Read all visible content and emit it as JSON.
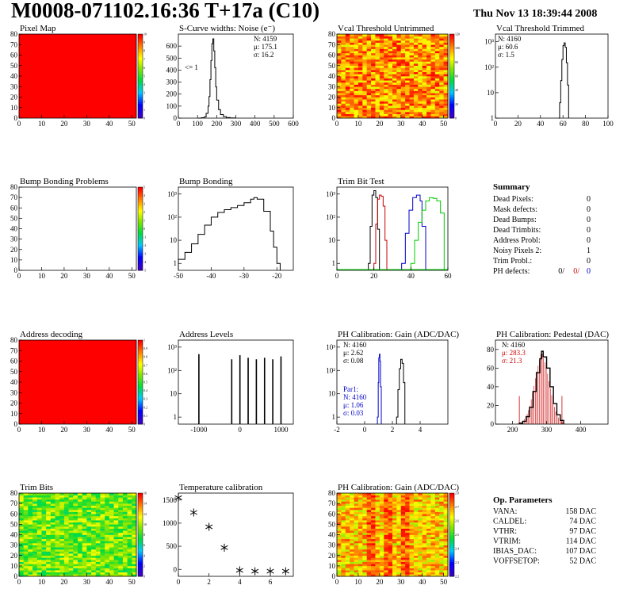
{
  "header": {
    "title": "M0008-071102.16:36 T+17a (C10)",
    "date": "Thu Nov 13 18:39:44 2008"
  },
  "colors": {
    "hist_line": "#000000",
    "red_series": "#cc0000",
    "blue_series": "#0000cc",
    "green_series": "#00cc00",
    "map_full": "#ff0000"
  },
  "chart_data": [
    {
      "id": "pixel-map",
      "type": "heatmap",
      "title": "Pixel Map",
      "xlim": [
        0,
        52
      ],
      "ylim": [
        0,
        80
      ],
      "xticks": [
        "0",
        "10",
        "20",
        "30",
        "40",
        "50"
      ],
      "yticks": [
        "0",
        "10",
        "20",
        "30",
        "40",
        "50",
        "60",
        "70",
        "80"
      ],
      "palette_ticks": [
        "0",
        "1",
        "2",
        "3",
        "4",
        "5",
        "6",
        "7",
        "8",
        "9",
        "10"
      ],
      "fill": "uniform-max"
    },
    {
      "id": "scurve-noise",
      "type": "line",
      "title": "S-Curve widths: Noise (e⁻)",
      "xlim": [
        0,
        600
      ],
      "ylim": [
        0,
        700
      ],
      "xticks": [
        "0",
        "100",
        "200",
        "300",
        "400",
        "500",
        "600"
      ],
      "yticks": [
        "0",
        "100",
        "200",
        "300",
        "400",
        "500",
        "600"
      ],
      "stats": [
        "N: 4159",
        "μ: 175.1",
        "σ: 16.2"
      ],
      "annotation": "<= 1",
      "x": [
        100,
        120,
        135,
        145,
        155,
        160,
        165,
        170,
        175,
        180,
        185,
        190,
        195,
        200,
        210,
        220,
        235,
        250,
        270,
        300
      ],
      "y": [
        0,
        3,
        10,
        40,
        100,
        180,
        320,
        480,
        620,
        660,
        560,
        420,
        260,
        150,
        70,
        30,
        12,
        5,
        2,
        0
      ]
    },
    {
      "id": "vcal-untrimmed",
      "type": "heatmap",
      "title": "Vcal Threshold Untrimmed",
      "xlim": [
        0,
        52
      ],
      "ylim": [
        0,
        80
      ],
      "xticks": [
        "0",
        "10",
        "20",
        "30",
        "40",
        "50"
      ],
      "yticks": [
        "0",
        "10",
        "20",
        "30",
        "40",
        "50",
        "60",
        "70",
        "80"
      ],
      "palette_ticks": [
        "0",
        "20",
        "40",
        "60",
        "80",
        "100",
        "120"
      ],
      "fill": "noise-high"
    },
    {
      "id": "vcal-trimmed",
      "type": "line",
      "title": "Vcal Threshold Trimmed",
      "xlim": [
        0,
        100
      ],
      "ylim": [
        1,
        2000
      ],
      "yscale": "log",
      "xticks": [
        "0",
        "20",
        "40",
        "60",
        "80",
        "100"
      ],
      "yticks": [
        "1",
        "10",
        "10²",
        "10³"
      ],
      "stats": [
        "N: 4160",
        "μ: 60.6",
        "σ:  1.5"
      ],
      "x": [
        56,
        57,
        58,
        59,
        60,
        61,
        62,
        63,
        64,
        65
      ],
      "y": [
        1,
        4,
        30,
        200,
        700,
        900,
        600,
        150,
        20,
        2
      ]
    },
    {
      "id": "bump-bonding-problems",
      "type": "heatmap",
      "title": "Bump Bonding Problems",
      "xlim": [
        0,
        52
      ],
      "ylim": [
        0,
        80
      ],
      "xticks": [
        "0",
        "10",
        "20",
        "30",
        "40",
        "50"
      ],
      "yticks": [
        "0",
        "10",
        "20",
        "30",
        "40",
        "50",
        "60",
        "70",
        "80"
      ],
      "palette_ticks": [
        "-5",
        "-4",
        "-3",
        "-2",
        "-1",
        "0",
        "1",
        "2",
        "3",
        "4",
        "5"
      ],
      "fill": "empty"
    },
    {
      "id": "bump-bonding",
      "type": "line",
      "title": "Bump Bonding",
      "xlim": [
        -50,
        -15
      ],
      "ylim": [
        0.5,
        2000
      ],
      "yscale": "log",
      "xticks": [
        "-50",
        "-40",
        "-30",
        "-20"
      ],
      "yticks": [
        "1",
        "10",
        "10²",
        "10³"
      ],
      "x": [
        -50,
        -48,
        -46,
        -44,
        -42,
        -40,
        -38,
        -36,
        -34,
        -32,
        -30,
        -28,
        -27,
        -26,
        -24,
        -22,
        -21,
        -20,
        -19
      ],
      "y": [
        1.5,
        3,
        7,
        18,
        45,
        100,
        160,
        210,
        260,
        320,
        420,
        600,
        700,
        600,
        180,
        25,
        5,
        1,
        0.5
      ]
    },
    {
      "id": "trim-bit-test",
      "type": "line",
      "title": "Trim Bit Test",
      "xlim": [
        0,
        60
      ],
      "ylim": [
        0.5,
        2000
      ],
      "yscale": "log",
      "xticks": [
        "0",
        "20",
        "40",
        "60"
      ],
      "yticks": [
        "1",
        "10",
        "10²",
        "10³"
      ],
      "series": [
        {
          "color": "#000000",
          "x": [
            17,
            18,
            19,
            20,
            21,
            22,
            23
          ],
          "y": [
            1,
            40,
            900,
            1400,
            700,
            30,
            1
          ]
        },
        {
          "color": "#cc0000",
          "x": [
            20,
            21,
            22,
            23,
            24,
            25,
            26,
            27
          ],
          "y": [
            1,
            50,
            600,
            900,
            800,
            300,
            10,
            1
          ]
        },
        {
          "color": "#0000cc",
          "x": [
            35,
            37,
            39,
            41,
            43,
            45,
            46,
            48
          ],
          "y": [
            1,
            20,
            200,
            700,
            900,
            500,
            40,
            1
          ]
        },
        {
          "color": "#00cc00",
          "x": [
            40,
            42,
            44,
            46,
            48,
            50,
            52,
            54,
            56,
            58
          ],
          "y": [
            1,
            10,
            60,
            200,
            500,
            700,
            650,
            500,
            150,
            1
          ]
        }
      ]
    },
    {
      "id": "address-decoding",
      "type": "heatmap",
      "title": "Address decoding",
      "xlim": [
        0,
        52
      ],
      "ylim": [
        0,
        80
      ],
      "xticks": [
        "0",
        "10",
        "20",
        "30",
        "40",
        "50"
      ],
      "yticks": [
        "0",
        "10",
        "20",
        "30",
        "40",
        "50",
        "60",
        "70",
        "80"
      ],
      "palette_ticks": [
        "0",
        "0.1",
        "0.2",
        "0.3",
        "0.4",
        "0.5",
        "0.6",
        "0.7",
        "0.8",
        "0.9",
        "1"
      ],
      "fill": "uniform-max"
    },
    {
      "id": "address-levels",
      "type": "line",
      "title": "Address Levels",
      "xlim": [
        -1500,
        1300
      ],
      "ylim": [
        0.5,
        2000
      ],
      "yscale": "log",
      "xticks": [
        "-1000",
        "0",
        "1000"
      ],
      "yticks": [
        "1",
        "10",
        "10²",
        "10³"
      ],
      "spikes": [
        {
          "x": -1000,
          "h": 500
        },
        {
          "x": -200,
          "h": 300
        },
        {
          "x": 0,
          "h": 450
        },
        {
          "x": 200,
          "h": 350
        },
        {
          "x": 400,
          "h": 300
        },
        {
          "x": 600,
          "h": 350
        },
        {
          "x": 800,
          "h": 300
        },
        {
          "x": 1000,
          "h": 400
        }
      ]
    },
    {
      "id": "ph-gain",
      "type": "line",
      "title": "PH Calibration: Gain (ADC/DAC)",
      "xlim": [
        -2,
        6
      ],
      "ylim": [
        0.5,
        2000
      ],
      "yscale": "log",
      "xticks": [
        "-2",
        "0",
        "2",
        "4"
      ],
      "yticks": [
        "1",
        "10",
        "10²",
        "10³"
      ],
      "stats": [
        "N: 4160",
        "μ: 2.62",
        "σ: 0.08"
      ],
      "stats2": [
        "Par1:",
        "N: 4160",
        "μ: 1.06",
        "σ: 0.03"
      ],
      "series": [
        {
          "color": "#000000",
          "x": [
            2.3,
            2.4,
            2.5,
            2.6,
            2.7,
            2.8,
            2.9
          ],
          "y": [
            1,
            15,
            120,
            300,
            200,
            30,
            1
          ]
        },
        {
          "color": "#0000cc",
          "x": [
            0.92,
            0.98,
            1.02,
            1.06,
            1.1,
            1.14,
            1.2
          ],
          "y": [
            1,
            30,
            350,
            500,
            250,
            20,
            1
          ]
        }
      ]
    },
    {
      "id": "ph-pedestal",
      "type": "line",
      "title": "PH Calibration: Pedestal (DAC)",
      "xlim": [
        150,
        480
      ],
      "ylim": [
        0,
        90
      ],
      "xticks": [
        "200",
        "300",
        "400"
      ],
      "yticks": [
        "0",
        "20",
        "40",
        "60",
        "80"
      ],
      "stats": [
        "N: 4160",
        "μ: 283.3",
        "σ: 21.3"
      ],
      "x": [
        220,
        230,
        240,
        250,
        260,
        270,
        280,
        285,
        290,
        300,
        310,
        320,
        330,
        340,
        350
      ],
      "y": [
        1,
        3,
        8,
        18,
        35,
        55,
        70,
        78,
        72,
        60,
        40,
        22,
        10,
        4,
        1
      ]
    },
    {
      "id": "trim-bits",
      "type": "heatmap",
      "title": "Trim Bits",
      "xlim": [
        0,
        52
      ],
      "ylim": [
        0,
        80
      ],
      "xticks": [
        "0",
        "10",
        "20",
        "30",
        "40",
        "50"
      ],
      "yticks": [
        "0",
        "10",
        "20",
        "30",
        "40",
        "50",
        "60",
        "70",
        "80"
      ],
      "palette_ticks": [
        "0",
        "2",
        "4",
        "6",
        "8",
        "10",
        "12",
        "14",
        "16"
      ],
      "fill": "noise-mid"
    },
    {
      "id": "temperature-calibration",
      "type": "scatter",
      "title": "Temperature calibration",
      "xlim": [
        0,
        7.5
      ],
      "ylim": [
        -150,
        1650
      ],
      "xticks": [
        "0",
        "2",
        "4",
        "6"
      ],
      "yticks": [
        "0",
        "500",
        "1000",
        "1500"
      ],
      "x": [
        0,
        1,
        2,
        3,
        4,
        5,
        6,
        7
      ],
      "y": [
        1550,
        1230,
        920,
        470,
        -20,
        -40,
        -40,
        -40
      ]
    },
    {
      "id": "ph-gain-map",
      "type": "heatmap",
      "title": "PH Calibration: Gain (ADC/DAC)",
      "xlim": [
        0,
        52
      ],
      "ylim": [
        0,
        80
      ],
      "xticks": [
        "0",
        "10",
        "20",
        "30",
        "40",
        "50"
      ],
      "yticks": [
        "0",
        "10",
        "20",
        "30",
        "40",
        "50",
        "60",
        "70",
        "80"
      ],
      "palette_ticks": [
        "2.2",
        "2.3",
        "2.4",
        "2.5",
        "2.6",
        "2.7",
        "2.8"
      ],
      "fill": "noise-stripes"
    }
  ],
  "summary": {
    "title": "Summary",
    "rows": [
      {
        "label": "Dead Pixels:",
        "value": "0"
      },
      {
        "label": "Mask defects:",
        "value": "0"
      },
      {
        "label": "Dead Bumps:",
        "value": "0"
      },
      {
        "label": "Dead Trimbits:",
        "value": "0"
      },
      {
        "label": "Address Probl:",
        "value": "0"
      },
      {
        "label": "Noisy Pixels 2:",
        "value": "1"
      },
      {
        "label": "Trim Probl.:",
        "value": "0"
      }
    ],
    "ph_defects": {
      "label": "PH defects:",
      "v1": "0/",
      "v2": "0/",
      "v3": "0"
    }
  },
  "op_params": {
    "title": "Op. Parameters",
    "rows": [
      {
        "label": "VANA:",
        "value": "158 DAC"
      },
      {
        "label": "CALDEL:",
        "value": "74 DAC"
      },
      {
        "label": "VTHR:",
        "value": "97 DAC"
      },
      {
        "label": "VTRIM:",
        "value": "114 DAC"
      },
      {
        "label": "IBIAS_DAC:",
        "value": "107 DAC"
      },
      {
        "label": "VOFFSETOP:",
        "value": "52 DAC"
      }
    ]
  }
}
